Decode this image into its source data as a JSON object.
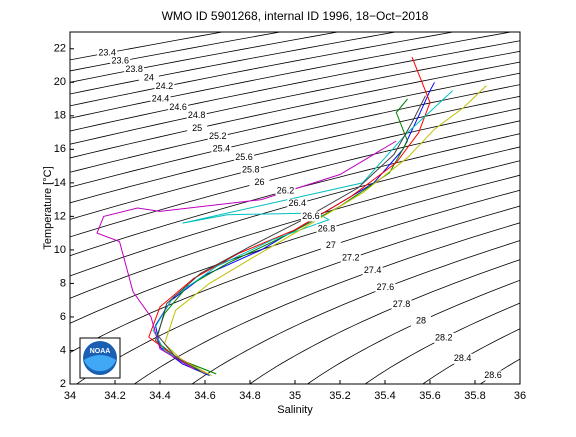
{
  "chart_data": {
    "type": "line",
    "title": "WMO ID 5901268, internal ID 1996, 18−Oct−2018",
    "x_label": "Salinity",
    "y_label": "Temperature [°C]",
    "xlim": [
      34,
      36
    ],
    "xticks": [
      34,
      34.2,
      34.4,
      34.6,
      34.8,
      35,
      35.2,
      35.4,
      35.6,
      35.8,
      36
    ],
    "ylim": [
      2,
      23
    ],
    "yticks": [
      2,
      4,
      6,
      8,
      10,
      12,
      14,
      16,
      18,
      20,
      22
    ],
    "contour_color": "#000000",
    "contours": {
      "levels": [
        23.4,
        23.6,
        23.8,
        24,
        24.2,
        24.4,
        24.6,
        24.8,
        25,
        25.2,
        25.4,
        25.6,
        25.8,
        26,
        26.2,
        26.4,
        26.6,
        26.8,
        27,
        27.2,
        27.4,
        27.6,
        27.8,
        28,
        28.2,
        28.4,
        28.6
      ]
    },
    "logo_text": "NOAA",
    "series": [
      {
        "color": "#0000ff",
        "x": [
          34.62,
          34.5,
          34.4,
          34.38,
          34.45,
          34.6,
          34.85,
          35.1,
          35.35,
          35.48,
          35.55,
          35.6,
          35.62
        ],
        "values": [
          2.5,
          3.2,
          4.2,
          5.5,
          7,
          8.5,
          10,
          12,
          14,
          16,
          18,
          19.5,
          20
        ]
      },
      {
        "color": "#008000",
        "x": [
          34.65,
          34.48,
          34.38,
          34.42,
          34.52,
          34.7,
          34.95,
          35.2,
          35.42,
          35.5,
          35.45,
          35.5
        ],
        "values": [
          2.6,
          3.5,
          4.6,
          6.2,
          7.8,
          9.2,
          10.8,
          12.6,
          14.6,
          16.5,
          18.2,
          19
        ]
      },
      {
        "color": "#ff0000",
        "x": [
          34.6,
          34.45,
          34.35,
          34.4,
          34.55,
          34.75,
          35.0,
          35.25,
          35.45,
          35.55,
          35.6,
          35.52
        ],
        "values": [
          2.7,
          3.8,
          4.8,
          6.6,
          8.3,
          9.8,
          11.2,
          13.2,
          15.2,
          17,
          18.8,
          21.5
        ]
      },
      {
        "color": "#00bfbf",
        "x": [
          34.58,
          34.42,
          34.37,
          34.46,
          34.65,
          34.9,
          35.15,
          35.1,
          34.7,
          34.5,
          35.3,
          35.5,
          35.7
        ],
        "values": [
          2.8,
          4,
          5.2,
          7.2,
          9,
          10.6,
          11.8,
          12.2,
          12.1,
          11.6,
          14,
          17,
          19.5
        ]
      },
      {
        "color": "#bf00bf",
        "x": [
          34.55,
          34.4,
          34.36,
          34.28,
          34.25,
          34.22,
          34.12,
          34.15,
          34.3,
          34.4,
          34.85,
          35.2,
          35.45
        ],
        "values": [
          2.9,
          4.1,
          6,
          7.5,
          9,
          10.5,
          11,
          12,
          12.5,
          12.3,
          13,
          14.5,
          16.5
        ]
      },
      {
        "color": "#bfbf00",
        "x": [
          34.63,
          34.5,
          34.42,
          34.47,
          34.62,
          34.82,
          35.05,
          35.3,
          35.5,
          35.62,
          35.75,
          35.85
        ],
        "values": [
          2.5,
          3.4,
          4.4,
          6.4,
          8,
          9.6,
          11.4,
          13.4,
          15.5,
          17.2,
          18.5,
          19.8
        ]
      },
      {
        "color": "#404040",
        "x": [
          34.6,
          34.47,
          34.39,
          34.43,
          34.58,
          34.8,
          35.02,
          35.28,
          35.44,
          35.52,
          35.58
        ],
        "values": [
          2.6,
          3.6,
          4.9,
          6.8,
          8.6,
          10.2,
          11.7,
          13.7,
          15.7,
          17.6,
          19.2
        ]
      }
    ]
  }
}
